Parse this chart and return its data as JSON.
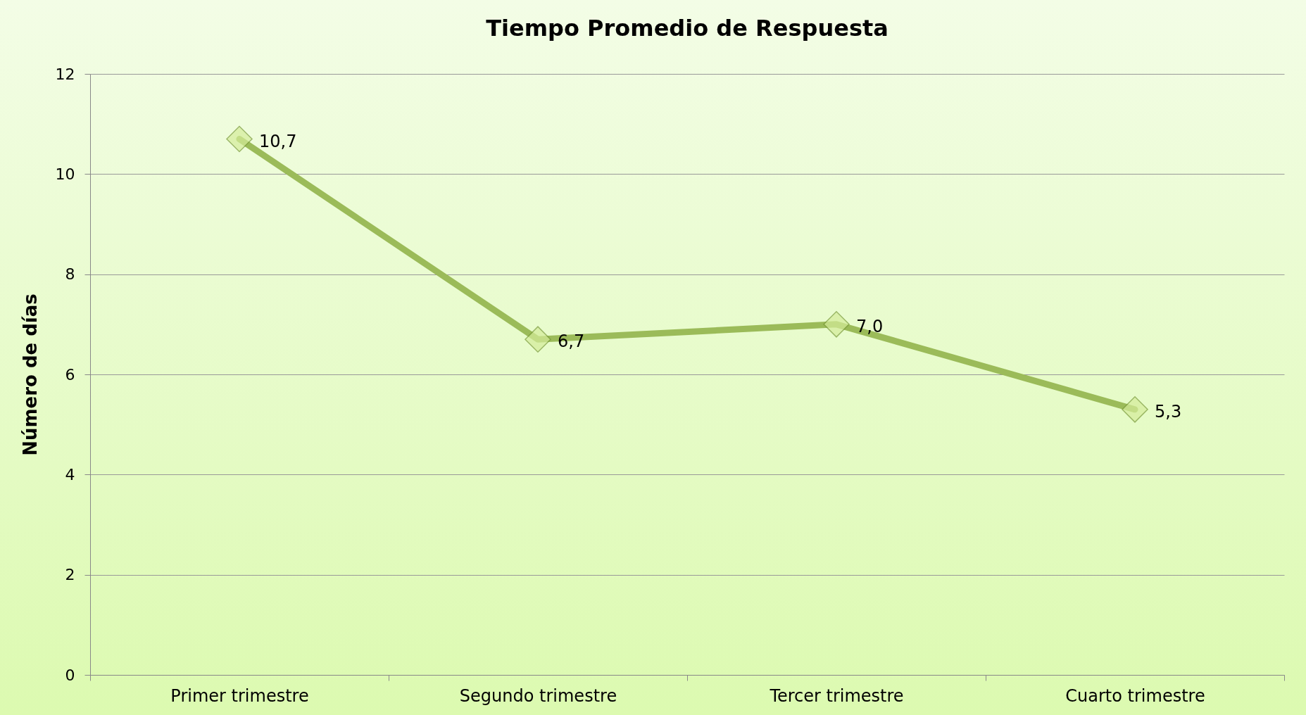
{
  "chart_data": {
    "type": "line",
    "title": "Tiempo Promedio de Respuesta",
    "ylabel": "Número de días",
    "categories": [
      "Primer trimestre",
      "Segundo trimestre",
      "Tercer trimestre",
      "Cuarto trimestre"
    ],
    "series": [
      {
        "color": "#9bbb59",
        "values": [
          10.7,
          6.7,
          7.0,
          5.3
        ],
        "value_labels": [
          "10,7",
          "6,7",
          "7,0",
          "5,3"
        ]
      }
    ],
    "ylim": [
      0,
      12
    ],
    "yticks": [
      0,
      2,
      4,
      6,
      8,
      10,
      12
    ],
    "grid": "y",
    "legend": false,
    "marker": "diamond",
    "line_style": "solid"
  }
}
